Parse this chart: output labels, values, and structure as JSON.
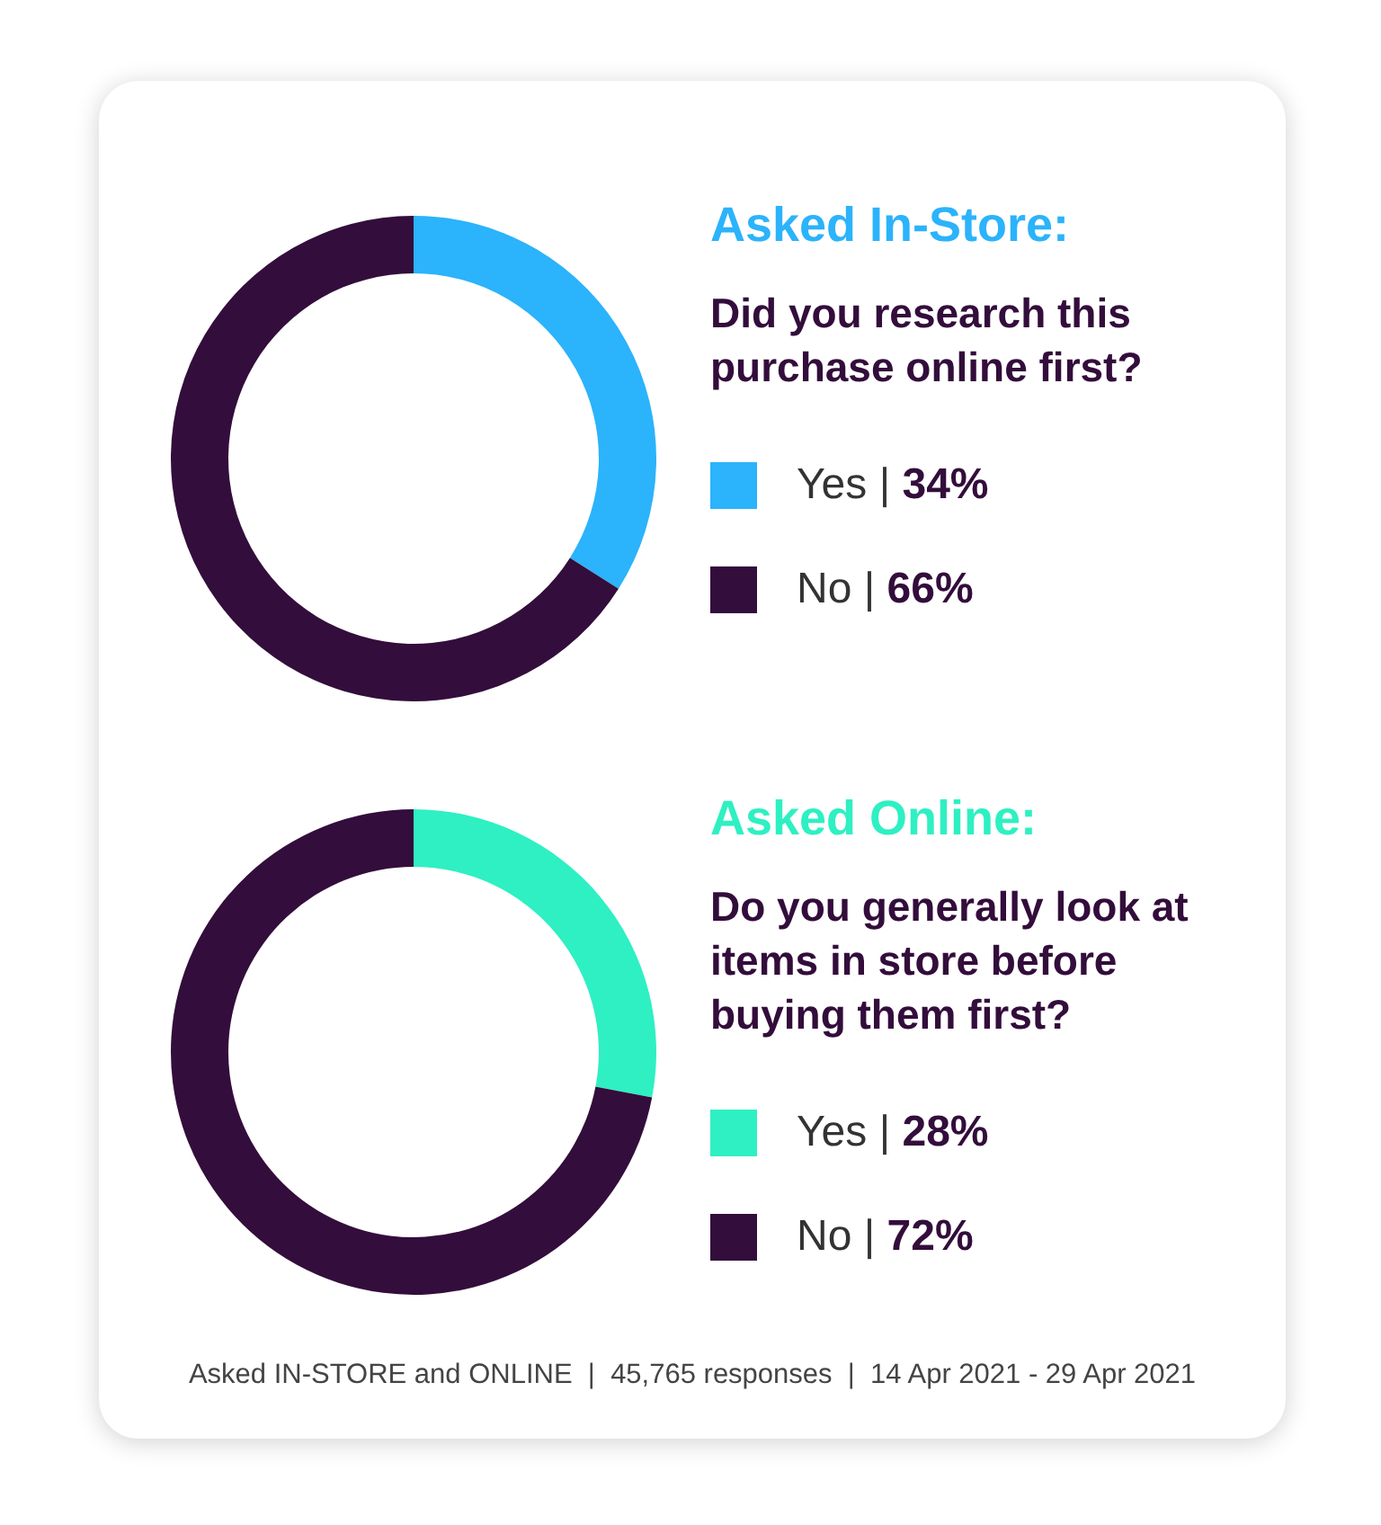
{
  "chart_data": [
    {
      "type": "donut",
      "title": "Asked In-Store:",
      "subtitle": "Did you research this purchase online first?",
      "categories": [
        "Yes",
        "No"
      ],
      "values": [
        34,
        66
      ],
      "colors": [
        "#2bb3fb",
        "#330d3b"
      ],
      "value_labels": [
        "| 34%",
        "| 66%"
      ],
      "legend": "right"
    },
    {
      "type": "donut",
      "title": "Asked Online:",
      "subtitle": "Do you generally look at items in store before buying them first?",
      "categories": [
        "Yes",
        "No"
      ],
      "values": [
        28,
        72
      ],
      "colors": [
        "#2ef0c2",
        "#330d3b"
      ],
      "value_labels": [
        "| 28%",
        "| 72%"
      ],
      "legend": "right",
      "annotations": [
        "Asked IN-STORE and ONLINE  |  45,765 responses  |  14 Apr 2021 - 29 Apr 2021"
      ]
    }
  ]
}
